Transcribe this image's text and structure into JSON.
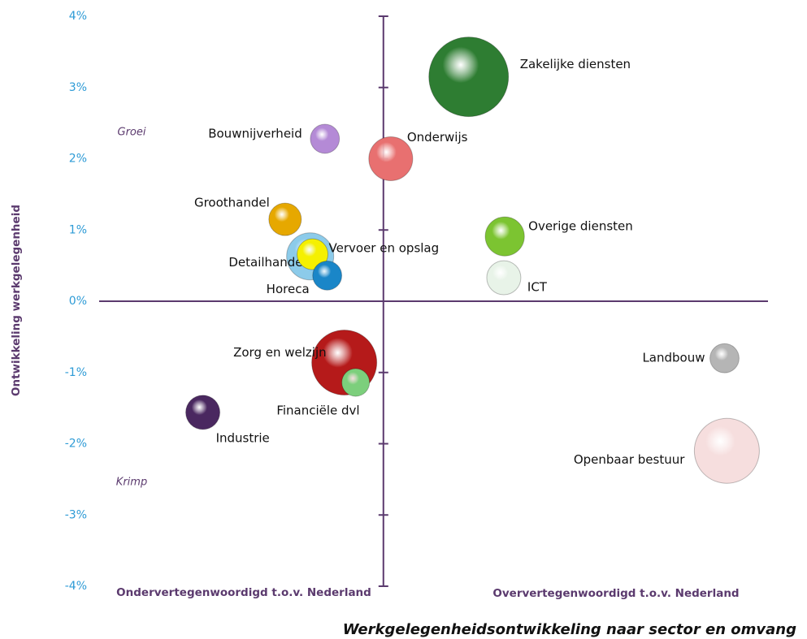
{
  "chart_data": {
    "type": "bubble",
    "title": "Werkgelegenheidsontwikkeling naar sector en omvang",
    "y_label": "Ontwikkeling werkgelegenheid",
    "x_label_left": "Ondervertegenwoordigd t.o.v. Nederland",
    "x_label_right": "Oververtegenwoordigd t.o.v. Nederland",
    "annotations": [
      "Groei",
      "Krimp"
    ],
    "xlim": [
      -0.85,
      1.15
    ],
    "ylim": [
      -4,
      4
    ],
    "yticks": [
      {
        "value": -4,
        "label": "-4%"
      },
      {
        "value": -3,
        "label": "-3%"
      },
      {
        "value": -2,
        "label": "-2%"
      },
      {
        "value": -1,
        "label": "-1%"
      },
      {
        "value": 0,
        "label": "0%"
      },
      {
        "value": 1,
        "label": "1%"
      },
      {
        "value": 2,
        "label": "2%"
      },
      {
        "value": 3,
        "label": "3%"
      },
      {
        "value": 4,
        "label": "4%"
      }
    ],
    "labels": [
      "Zakelijke diensten",
      "Bouwnijverheid",
      "Onderwijs",
      "Groothandel",
      "Overige diensten",
      "Detailhandel",
      "Vervoer en opslag",
      "Horeca",
      "ICT",
      "Zorg en welzijn",
      "Financiële dvl",
      "Landbouw",
      "Industrie",
      "Openbaar bestuur"
    ],
    "x": [
      0.255,
      -0.175,
      0.022,
      -0.294,
      0.363,
      -0.219,
      -0.212,
      -0.168,
      0.36,
      -0.117,
      -0.083,
      1.02,
      -0.54,
      1.027
    ],
    "values": [
      3.15,
      2.28,
      2.0,
      1.15,
      0.91,
      0.63,
      0.66,
      0.36,
      0.33,
      -0.86,
      -1.14,
      -0.8,
      -1.56,
      -2.1
    ],
    "sizes": [
      24,
      3.2,
      7.3,
      4,
      5.8,
      8.4,
      3.6,
      3.2,
      4.4,
      16,
      2.9,
      3.2,
      4.4,
      16
    ],
    "colors": [
      "#2e7d32",
      "#b48ad6",
      "#e87070",
      "#e6a800",
      "#7cc431",
      "#8ccbea",
      "#f5f000",
      "#1a86c8",
      "#e8f3e8",
      "#b51a1a",
      "#7ccf7c",
      "#b5b5b5",
      "#4a2860",
      "#f6dede"
    ]
  }
}
